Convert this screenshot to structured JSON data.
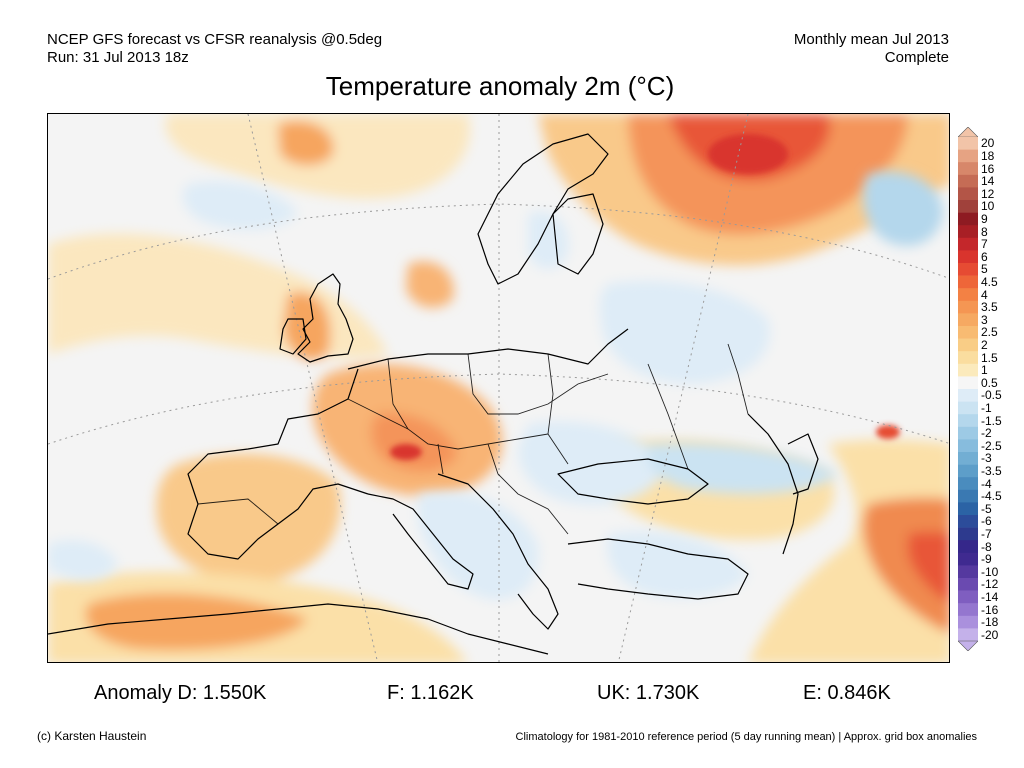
{
  "header": {
    "line1_left": "NCEP GFS forecast vs CFSR reanalysis @0.5deg",
    "line2_left": "Run: 31 Jul 2013 18z",
    "line1_right": "Monthly mean Jul 2013",
    "line2_right": "Complete"
  },
  "title": "Temperature anomaly 2m (°C)",
  "colorbar": {
    "labels": [
      "20",
      "18",
      "16",
      "14",
      "12",
      "10",
      "9",
      "8",
      "7",
      "6",
      "5",
      "4.5",
      "4",
      "3.5",
      "3",
      "2.5",
      "2",
      "1.5",
      "1",
      "0.5",
      "-0.5",
      "-1",
      "-1.5",
      "-2",
      "-2.5",
      "-3",
      "-3.5",
      "-4",
      "-4.5",
      "-5",
      "-6",
      "-7",
      "-8",
      "-9",
      "-10",
      "-12",
      "-14",
      "-16",
      "-18",
      "-20"
    ],
    "colors": [
      "#f2c4a8",
      "#e6a383",
      "#d7876a",
      "#c56c55",
      "#b35547",
      "#a0413b",
      "#8e1b22",
      "#a81f25",
      "#c4272b",
      "#d9342d",
      "#e64b33",
      "#ee6639",
      "#f38144",
      "#f59653",
      "#f6a962",
      "#f8bb72",
      "#f9cd86",
      "#fadd9f",
      "#fbeabc",
      "#f6f6f6",
      "#deecf7",
      "#cbe3f2",
      "#b4d7ec",
      "#9dcae5",
      "#87bcdd",
      "#72aed3",
      "#5d9ec9",
      "#4a8cbe",
      "#3a79b2",
      "#2b63a5",
      "#2c4c9a",
      "#2d3a8e",
      "#35278a",
      "#3f2a90",
      "#55399f",
      "#6a4ab0",
      "#7f5ec0",
      "#9476cf",
      "#aa90dd",
      "#c4b1ea"
    ]
  },
  "stats": {
    "d": "Anomaly D: 1.550K",
    "f": "F: 1.162K",
    "uk": "UK: 1.730K",
    "e": "E: 0.846K"
  },
  "footer": {
    "left": "(c) Karsten Haustein",
    "right": "Climatology for 1981-2010 reference period (5 day running mean) | Approx. grid box anomalies"
  }
}
